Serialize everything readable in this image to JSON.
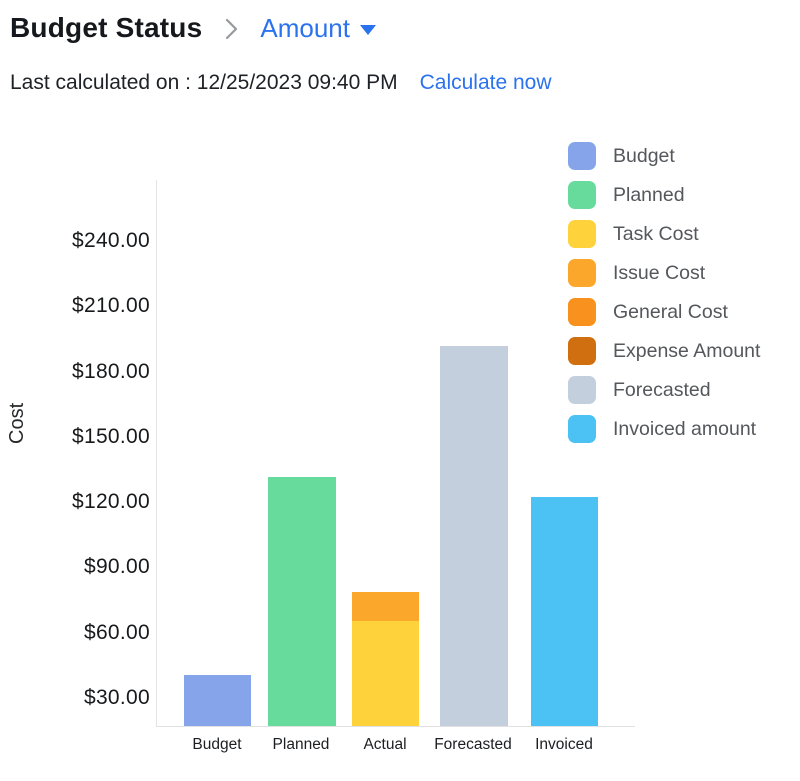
{
  "header": {
    "title": "Budget Status",
    "view_selector": {
      "label": "Amount"
    },
    "last_calculated": "Last calculated on : 12/25/2023 09:40 PM",
    "calculate_now_label": "Calculate now"
  },
  "colors": {
    "accent_blue": "#2b72ee",
    "axis_line": "#e4e4e7",
    "legend_text": "#54575b",
    "tick_text": "#17191b"
  },
  "chart_data": {
    "type": "bar",
    "title": "",
    "xlabel": "",
    "ylabel": "Cost",
    "categories": [
      "Budget",
      "Planned",
      "Actual",
      "Forecasted",
      "Invoiced"
    ],
    "y_ticks": [
      "$240.00",
      "$210.00",
      "$180.00",
      "$150.00",
      "$120.00",
      "$90.00",
      "$60.00",
      "$30.00"
    ],
    "y_tick_values": [
      240,
      210,
      180,
      150,
      120,
      90,
      60,
      30
    ],
    "ylim_visible": [
      17,
      255
    ],
    "grid": false,
    "legend_position": "top-right",
    "series": [
      {
        "name": "Budget",
        "color": "#85a4ea",
        "category": "Budget",
        "value": 40
      },
      {
        "name": "Planned",
        "color": "#66db9c",
        "category": "Planned",
        "value": 131
      },
      {
        "name": "Task Cost",
        "color": "#fdd23a",
        "category": "Actual",
        "value": 65,
        "stack": "Actual"
      },
      {
        "name": "Issue Cost",
        "color": "#fba72b",
        "category": "Actual",
        "value": 13,
        "stack": "Actual"
      },
      {
        "name": "General Cost",
        "color": "#f8911d",
        "category": "Actual",
        "value": 0,
        "stack": "Actual"
      },
      {
        "name": "Expense Amount",
        "color": "#d06f10",
        "category": "Actual",
        "value": 0,
        "stack": "Actual"
      },
      {
        "name": "Forecasted",
        "color": "#c3cfdc",
        "category": "Forecasted",
        "value": 191
      },
      {
        "name": "Invoiced amount",
        "color": "#4cc2f4",
        "category": "Invoiced",
        "value": 122
      }
    ]
  }
}
